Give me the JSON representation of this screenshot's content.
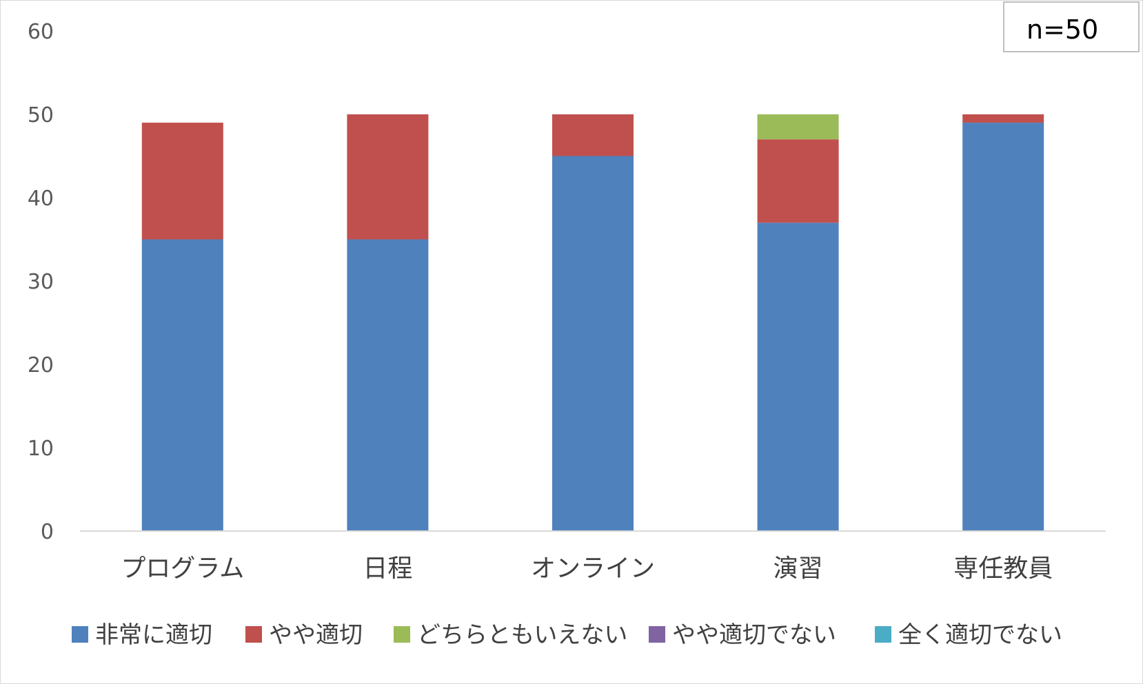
{
  "chart_data": {
    "type": "bar",
    "stacked": true,
    "categories": [
      "プログラム",
      "日程",
      "オンライン",
      "演習",
      "専任教員"
    ],
    "series": [
      {
        "name": "非常に適切",
        "values": [
          35,
          35,
          45,
          37,
          49
        ],
        "color": "#4F81BD"
      },
      {
        "name": "やや適切",
        "values": [
          14,
          15,
          5,
          10,
          1
        ],
        "color": "#C0504D"
      },
      {
        "name": "どちらともいえない",
        "values": [
          0,
          0,
          0,
          3,
          0
        ],
        "color": "#9BBB59"
      },
      {
        "name": "やや適切でない",
        "values": [
          0,
          0,
          0,
          0,
          0
        ],
        "color": "#8064A2"
      },
      {
        "name": "全く適切でない",
        "values": [
          0,
          0,
          0,
          0,
          0
        ],
        "color": "#4BACC6"
      }
    ],
    "ylim": [
      0,
      60
    ],
    "yticks": [
      0,
      10,
      20,
      30,
      40,
      50,
      60
    ],
    "title": "",
    "xlabel": "",
    "ylabel": "",
    "grid": false,
    "legend_position": "bottom",
    "annotation": "n=50"
  }
}
